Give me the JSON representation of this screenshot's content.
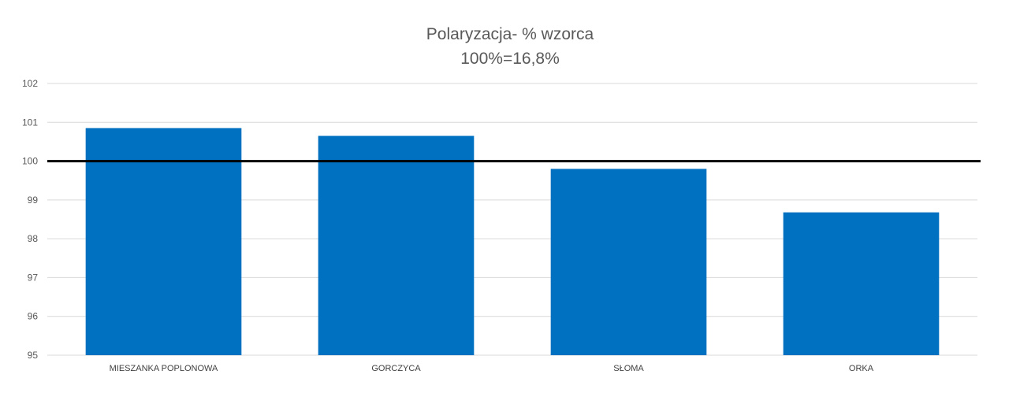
{
  "chart_data": {
    "type": "bar",
    "title": "Polaryzacja- % wzorca",
    "subtitle": "100%=16,8%",
    "categories": [
      "MIESZANKA POPLONOWA",
      "GORCZYCA",
      "SŁOMA",
      "ORKA"
    ],
    "values": [
      100.85,
      100.65,
      99.8,
      98.68
    ],
    "ylim": [
      95,
      102
    ],
    "yticks": [
      95,
      96,
      97,
      98,
      99,
      100,
      101,
      102
    ],
    "reference_line": 100,
    "grid": true,
    "legend": "none",
    "bar_color": "#0070C0",
    "reference_line_color": "#000000",
    "grid_color": "#D9D9D9"
  }
}
